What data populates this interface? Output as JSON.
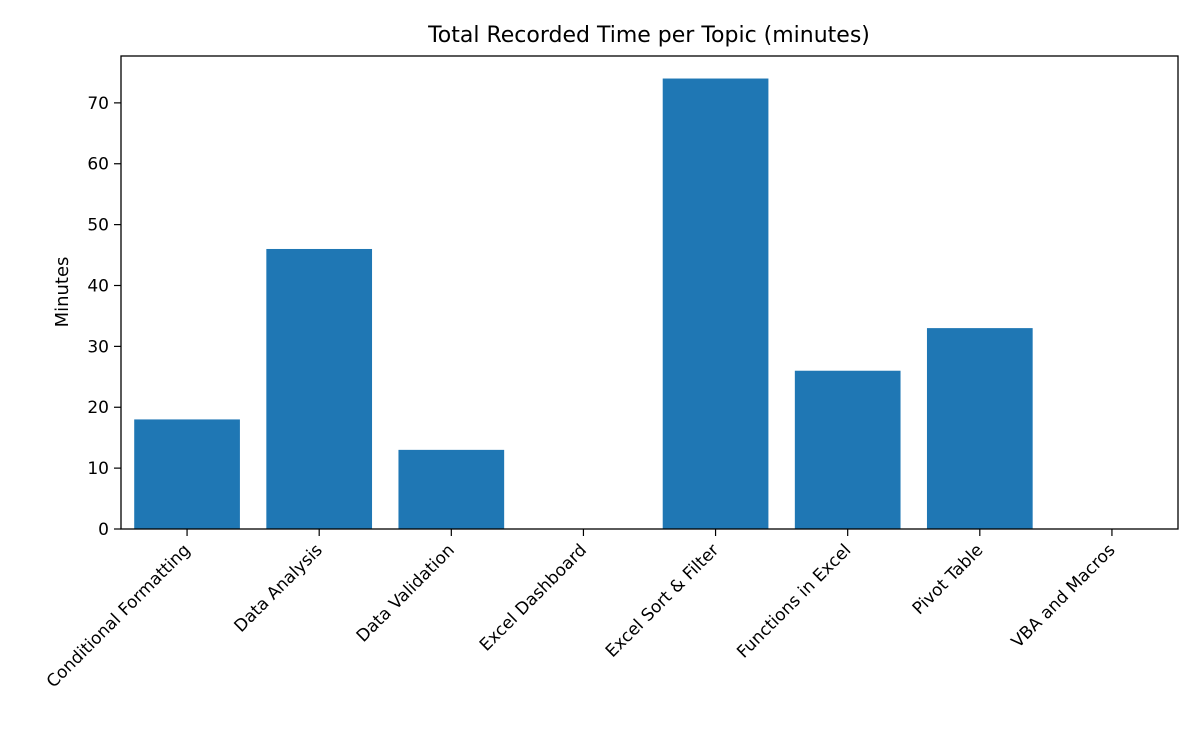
{
  "chart_data": {
    "type": "bar",
    "title": "Total Recorded Time per Topic (minutes)",
    "xlabel": "",
    "ylabel": "Minutes",
    "categories": [
      "Conditional Formatting",
      "Data Analysis",
      "Data Validation",
      "Excel Dashboard",
      "Excel Sort & Filter",
      "Functions in Excel",
      "Pivot Table",
      "VBA and Macros"
    ],
    "values": [
      18,
      46,
      13,
      0,
      74,
      26,
      33,
      0
    ],
    "ylim": [
      0,
      77.7
    ],
    "yticks": [
      0,
      10,
      20,
      30,
      40,
      50,
      60,
      70
    ],
    "grid": false,
    "legend": "none",
    "bar_color": "#1f77b4"
  }
}
